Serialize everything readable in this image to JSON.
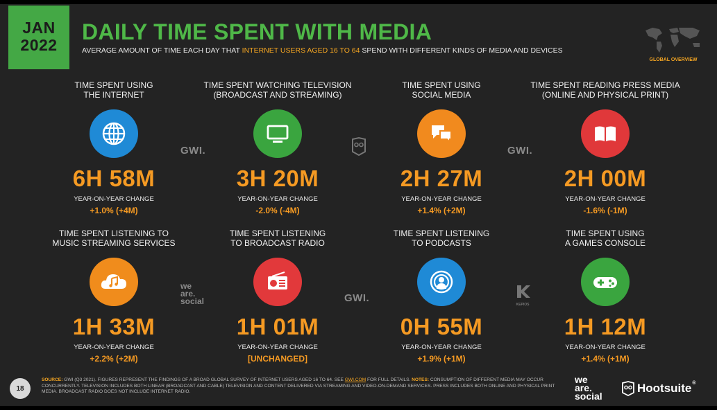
{
  "header": {
    "month": "JAN",
    "year": "2022",
    "title": "DAILY TIME SPENT WITH MEDIA",
    "subtitle_before": "AVERAGE AMOUNT OF TIME EACH DAY THAT ",
    "subtitle_highlight": "INTERNET USERS AGED  16 TO 64",
    "subtitle_after": " SPEND WITH DIFFERENT KINDS OF MEDIA AND DEVICES",
    "region_label": "GLOBAL OVERVIEW"
  },
  "yoy_label": "YEAR-ON-YEAR CHANGE",
  "cards": [
    {
      "label_1": "TIME SPENT USING",
      "label_2": "THE INTERNET",
      "value": "6H 58M",
      "change": "+1.0% (+4M)",
      "icon": "globe-icon",
      "color": "#1f8ad6"
    },
    {
      "label_1": "TIME SPENT WATCHING TELEVISION",
      "label_2": "(BROADCAST AND STREAMING)",
      "value": "3H 20M",
      "change": "-2.0% (-4M)",
      "icon": "television-icon",
      "color": "#3aa53f"
    },
    {
      "label_1": "TIME SPENT USING",
      "label_2": "SOCIAL MEDIA",
      "value": "2H 27M",
      "change": "+1.4% (+2M)",
      "icon": "chat-bubbles-icon",
      "color": "#f18a1e"
    },
    {
      "label_1": "TIME SPENT READING PRESS MEDIA",
      "label_2": "(ONLINE AND PHYSICAL PRINT)",
      "value": "2H 00M",
      "change": "-1.6% (-1M)",
      "icon": "book-icon",
      "color": "#e0383a"
    },
    {
      "label_1": "TIME SPENT LISTENING TO",
      "label_2": "MUSIC STREAMING SERVICES",
      "value": "1H 33M",
      "change": "+2.2% (+2M)",
      "icon": "music-cloud-icon",
      "color": "#f08c1c"
    },
    {
      "label_1": "TIME SPENT LISTENING",
      "label_2": "TO BROADCAST RADIO",
      "value": "1H 01M",
      "change": "[UNCHANGED]",
      "icon": "radio-icon",
      "color": "#e2393b"
    },
    {
      "label_1": "TIME SPENT LISTENING",
      "label_2": "TO PODCASTS",
      "value": "0H 55M",
      "change": "+1.9% (+1M)",
      "icon": "podcast-icon",
      "color": "#1f8ad6"
    },
    {
      "label_1": "TIME SPENT USING",
      "label_2": "A GAMES CONSOLE",
      "value": "1H 12M",
      "change": "+1.4% (+1M)",
      "icon": "gamepad-icon",
      "color": "#3aa53f"
    }
  ],
  "watermarks": {
    "gwi": "GWI.",
    "we": "we",
    "are": "are.",
    "social": "social",
    "kepios": "KEPIOS"
  },
  "footer": {
    "page_number": "18",
    "source_label": "SOURCE:",
    "source_text": " GWI (Q3 2021). FIGURES REPRESENT THE FINDINGS OF A BROAD GLOBAL SURVEY OF INTERNET USERS AGED 16 TO 64. SEE ",
    "source_link": "GWI.COM",
    "source_after": " FOR FULL DETAILS. ",
    "notes_label": "NOTES:",
    "notes_text": " CONSUMPTION OF DIFFERENT MEDIA MAY OCCUR CONCURRENTLY. TELEVISION INCLUDES BOTH LINEAR (BROADCAST AND CABLE) TELEVISION AND CONTENT DELIVERED VIA STREAMING AND VIDEO-ON-DEMAND SERVICES. PRESS INCLUDES BOTH ONLINE AND PHYSICAL PRINT MEDIA. BROADCAST RADIO DOES NOT INCLUDE INTERNET RADIO.",
    "was_we": "we",
    "was_are": "are.",
    "was_social": "social",
    "hootsuite": "Hootsuite",
    "hootsuite_mark": "®"
  }
}
